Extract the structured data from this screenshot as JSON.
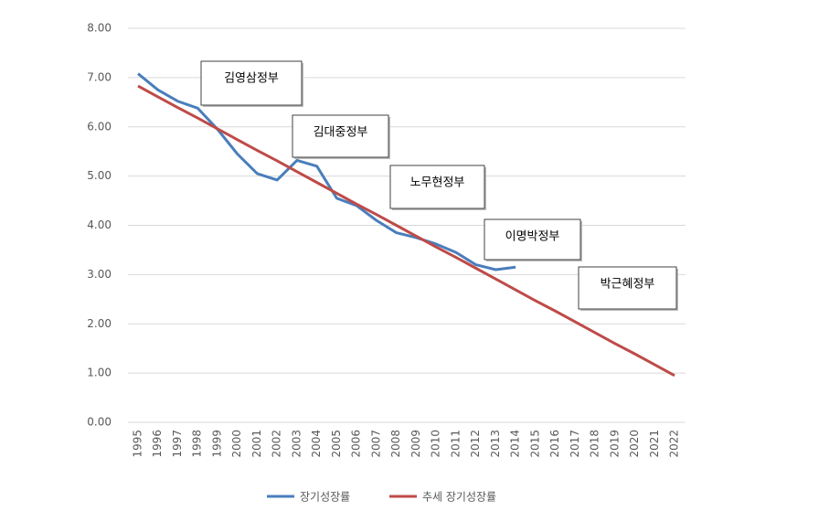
{
  "chart_data": {
    "type": "line",
    "categories": [
      "1995",
      "1996",
      "1997",
      "1998",
      "1999",
      "2000",
      "2001",
      "2002",
      "2003",
      "2004",
      "2005",
      "2006",
      "2007",
      "2008",
      "2009",
      "2010",
      "2011",
      "2012",
      "2013",
      "2014",
      "2015",
      "2016",
      "2017",
      "2018",
      "2019",
      "2020",
      "2021",
      "2022"
    ],
    "series": [
      {
        "name": "장기성장률",
        "color": "#4a7ebb",
        "values": [
          7.08,
          6.75,
          6.52,
          6.38,
          5.95,
          5.45,
          5.05,
          4.92,
          5.32,
          5.2,
          4.55,
          4.4,
          4.1,
          3.85,
          3.75,
          3.62,
          3.45,
          3.2,
          3.1,
          3.15,
          null,
          null,
          null,
          null,
          null,
          null,
          null,
          null
        ]
      },
      {
        "name": "추세 장기성장률",
        "color": "#be4b48",
        "values": [
          6.83,
          6.61,
          6.39,
          6.18,
          5.96,
          5.74,
          5.52,
          5.31,
          5.09,
          4.87,
          4.65,
          4.43,
          4.22,
          4.0,
          3.78,
          3.56,
          3.35,
          3.13,
          2.91,
          2.69,
          2.47,
          2.26,
          2.04,
          1.82,
          1.6,
          1.39,
          1.17,
          0.95
        ]
      }
    ],
    "ylim": [
      0,
      8
    ],
    "yticks": [
      {
        "value": 0,
        "label": "0.00"
      },
      {
        "value": 1,
        "label": "1.00"
      },
      {
        "value": 2,
        "label": "2.00"
      },
      {
        "value": 3,
        "label": "3.00"
      },
      {
        "value": 4,
        "label": "4.00"
      },
      {
        "value": 5,
        "label": "5.00"
      },
      {
        "value": 6,
        "label": "6.00"
      },
      {
        "value": 7,
        "label": "7.00"
      },
      {
        "value": 8,
        "label": "8.00"
      }
    ],
    "grid": true,
    "legend": "bottom",
    "annotations": [
      "김영삼정부",
      "김대중정부",
      "노무현정부",
      "이명박정부",
      "박근혜정부"
    ]
  }
}
